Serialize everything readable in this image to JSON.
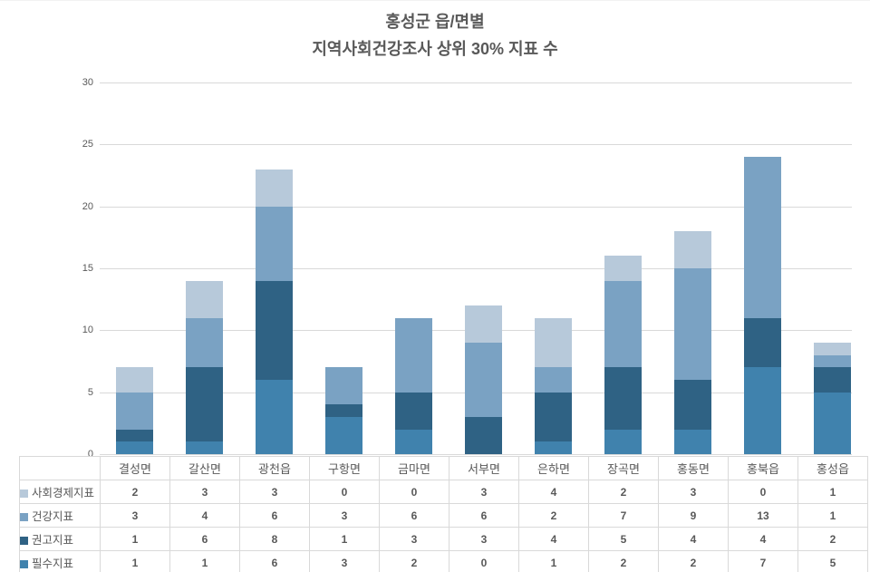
{
  "title": {
    "line1": "홍성군 읍/면별",
    "line2": "지역사회건강조사 상위 30% 지표 수"
  },
  "colors": {
    "socioeconomic": "#b7c9da",
    "health": "#7aa2c3",
    "recommended": "#2f6284",
    "essential": "#4082ad",
    "grid": "#d9d9d9",
    "table_border": "#d9d9d9",
    "text": "#595959"
  },
  "chart_data": {
    "type": "bar",
    "stacked": true,
    "title": "홍성군 읍/면별 지역사회건강조사 상위 30% 지표 수",
    "categories": [
      "결성면",
      "갈산면",
      "광천읍",
      "구항면",
      "금마면",
      "서부면",
      "은하면",
      "장곡면",
      "홍동면",
      "홍북읍",
      "홍성읍"
    ],
    "series": [
      {
        "name": "사회경제지표",
        "color": "#b7c9da",
        "values": [
          2,
          3,
          3,
          0,
          0,
          3,
          4,
          2,
          3,
          0,
          1
        ]
      },
      {
        "name": "건강지표",
        "color": "#7aa2c3",
        "values": [
          3,
          4,
          6,
          3,
          6,
          6,
          2,
          7,
          9,
          13,
          1
        ]
      },
      {
        "name": "권고지표",
        "color": "#2f6284",
        "values": [
          1,
          6,
          8,
          1,
          3,
          3,
          4,
          5,
          4,
          4,
          2
        ]
      },
      {
        "name": "필수지표",
        "color": "#4082ad",
        "values": [
          1,
          1,
          6,
          3,
          2,
          0,
          1,
          2,
          2,
          7,
          5
        ]
      }
    ],
    "stack_order_bottom_to_top": [
      "필수지표",
      "권고지표",
      "건강지표",
      "사회경제지표"
    ],
    "totals": [
      7,
      14,
      23,
      7,
      11,
      12,
      11,
      16,
      18,
      24,
      9
    ],
    "xlabel": "",
    "ylabel": "",
    "ylim": [
      0,
      30
    ],
    "yticks": [
      0,
      5,
      10,
      15,
      20,
      25,
      30
    ],
    "grid": true,
    "legend_position": "data-table-left"
  }
}
